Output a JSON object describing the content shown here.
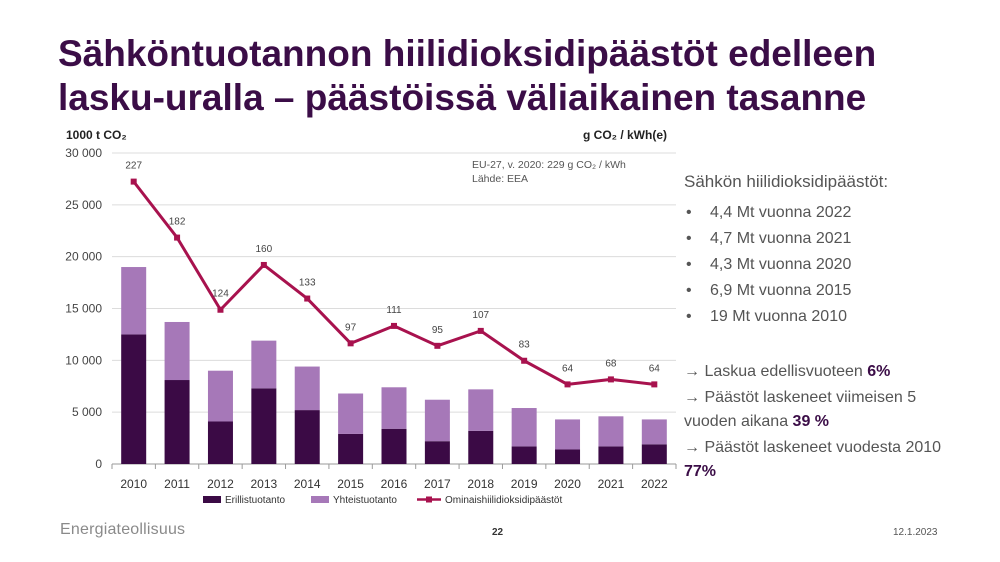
{
  "slide": {
    "title": "Sähköntuotannon hiilidioksidipäästöt edelleen lasku-uralla – päästöissä väliaikainen tasanne",
    "page_number": "22",
    "date": "12.1.2023",
    "footer_logo": "Energiateollisuus"
  },
  "side_panel": {
    "heading": "Sähkön hiilidioksidipäästöt:",
    "bullets": [
      "4,4 Mt vuonna 2022",
      "4,7 Mt vuonna 2021",
      "4,3 Mt vuonna 2020",
      "6,9 Mt vuonna 2015",
      "19 Mt vuonna 2010"
    ],
    "arrow_symbol": "→",
    "arrow_items": [
      {
        "text": "Laskua edellisvuoteen",
        "value": "6%"
      },
      {
        "text": "Päästöt laskeneet viimeisen 5 vuoden aikana",
        "value": "39 %"
      },
      {
        "text": "Päästöt laskeneet vuodesta 2010",
        "value": "77%"
      }
    ]
  },
  "chart_data": {
    "type": "bar",
    "stacked": true,
    "left_axis_unit": "1000 t CO₂",
    "right_axis_unit": "g CO₂ / kWh(e)",
    "categories": [
      "2010",
      "2011",
      "2012",
      "2013",
      "2014",
      "2015",
      "2016",
      "2017",
      "2018",
      "2019",
      "2020",
      "2021",
      "2022"
    ],
    "series": [
      {
        "name": "Erillistuotanto",
        "kind": "bar",
        "color": "#3b0a45",
        "values": [
          12500,
          8100,
          4100,
          7300,
          5200,
          2900,
          3400,
          2200,
          3200,
          1700,
          1400,
          1700,
          1900
        ]
      },
      {
        "name": "Yhteistuotanto",
        "kind": "bar",
        "color": "#a678b8",
        "values": [
          6500,
          5600,
          4900,
          4600,
          4200,
          3900,
          4000,
          4000,
          4000,
          3700,
          2900,
          2900,
          2400
        ]
      },
      {
        "name": "Ominaishiilidioksidipäästöt",
        "kind": "line",
        "axis": "right",
        "color": "#a8124e",
        "values": [
          227,
          182,
          124,
          160,
          133,
          97,
          111,
          95,
          107,
          83,
          64,
          68,
          64
        ]
      }
    ],
    "y_left_ticks": [
      "0",
      "5 000",
      "10 000",
      "15 000",
      "20 000",
      "25 000",
      "30 000"
    ],
    "ylim_left": [
      0,
      30000
    ],
    "ylim_right": [
      0,
      250
    ],
    "grid": true,
    "legend_position": "bottom",
    "annotation_lines": [
      "EU-27, v. 2020: 229 g CO₂ / kWh",
      "Lähde: EEA"
    ]
  }
}
